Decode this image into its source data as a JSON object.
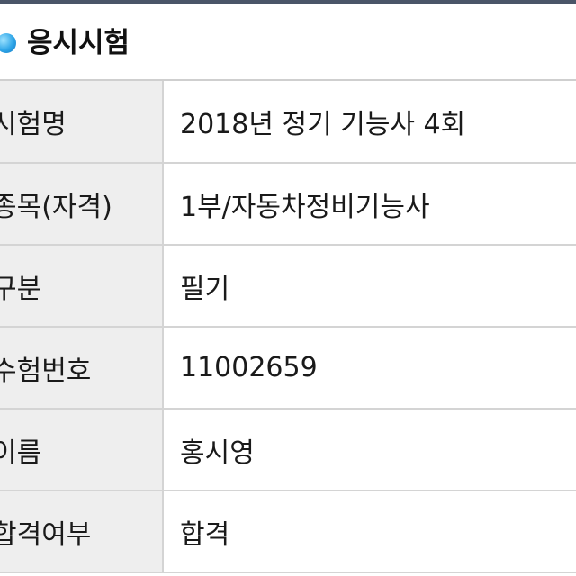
{
  "section": {
    "title": "응시시험",
    "icon": "bullet-circle-icon",
    "icon_color": "#2fa6e8"
  },
  "rows": [
    {
      "label": "시험명",
      "value": "2018년 정기 기능사 4회"
    },
    {
      "label": "종목(자격)",
      "value": "1부/자동차정비기능사"
    },
    {
      "label": "구분",
      "value": "필기"
    },
    {
      "label": "수험번호",
      "value": "11002659"
    },
    {
      "label": "이름",
      "value": "홍시영"
    },
    {
      "label": "합격여부",
      "value": "합격"
    }
  ]
}
